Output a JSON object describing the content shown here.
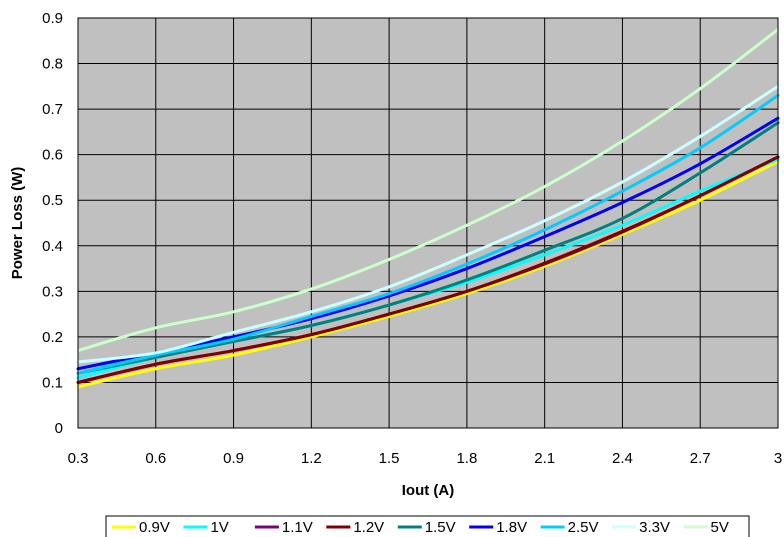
{
  "chart_data": {
    "type": "line",
    "title": "",
    "xlabel": "Iout (A)",
    "ylabel": "Power Loss (W)",
    "xlim": [
      0.3,
      3
    ],
    "ylim": [
      0,
      0.9
    ],
    "x_ticks": [
      "0.3",
      "0.6",
      "0.9",
      "1.2",
      "1.5",
      "1.8",
      "2.1",
      "2.4",
      "2.7",
      "3"
    ],
    "y_ticks": [
      "0",
      "0.1",
      "0.2",
      "0.3",
      "0.4",
      "0.5",
      "0.6",
      "0.7",
      "0.8",
      "0.9"
    ],
    "grid": true,
    "legend_position": "bottom",
    "plot_background": "#c0c0c0",
    "x": [
      0.3,
      0.6,
      0.9,
      1.2,
      1.5,
      1.8,
      2.1,
      2.4,
      2.7,
      3.0
    ],
    "series": [
      {
        "name": "0.9V",
        "color": "#ffff00",
        "values": [
          0.09,
          0.13,
          0.16,
          0.2,
          0.245,
          0.295,
          0.355,
          0.425,
          0.5,
          0.585
        ]
      },
      {
        "name": "1V",
        "color": "#00ffff",
        "values": [
          0.11,
          0.155,
          0.19,
          0.225,
          0.27,
          0.32,
          0.38,
          0.445,
          0.52,
          0.59
        ]
      },
      {
        "name": "1.1V",
        "color": "#800080",
        "values": [
          0.1,
          0.14,
          0.17,
          0.205,
          0.25,
          0.3,
          0.36,
          0.43,
          0.51,
          0.595
        ]
      },
      {
        "name": "1.2V",
        "color": "#800000",
        "values": [
          0.1,
          0.14,
          0.17,
          0.205,
          0.25,
          0.3,
          0.362,
          0.432,
          0.51,
          0.595
        ]
      },
      {
        "name": "1.5V",
        "color": "#008080",
        "values": [
          0.12,
          0.155,
          0.19,
          0.225,
          0.27,
          0.325,
          0.39,
          0.46,
          0.56,
          0.67
        ]
      },
      {
        "name": "1.8V",
        "color": "#0000ff",
        "values": [
          0.13,
          0.165,
          0.2,
          0.24,
          0.29,
          0.35,
          0.42,
          0.495,
          0.58,
          0.68
        ]
      },
      {
        "name": "2.5V",
        "color": "#00ccff",
        "values": [
          0.12,
          0.16,
          0.195,
          0.245,
          0.295,
          0.36,
          0.435,
          0.52,
          0.615,
          0.73
        ]
      },
      {
        "name": "3.3V",
        "color": "#ccffff",
        "values": [
          0.145,
          0.165,
          0.21,
          0.255,
          0.31,
          0.38,
          0.455,
          0.54,
          0.64,
          0.75
        ]
      },
      {
        "name": "5V",
        "color": "#ccffcc",
        "values": [
          0.17,
          0.22,
          0.255,
          0.305,
          0.37,
          0.445,
          0.53,
          0.63,
          0.745,
          0.875
        ]
      }
    ]
  }
}
